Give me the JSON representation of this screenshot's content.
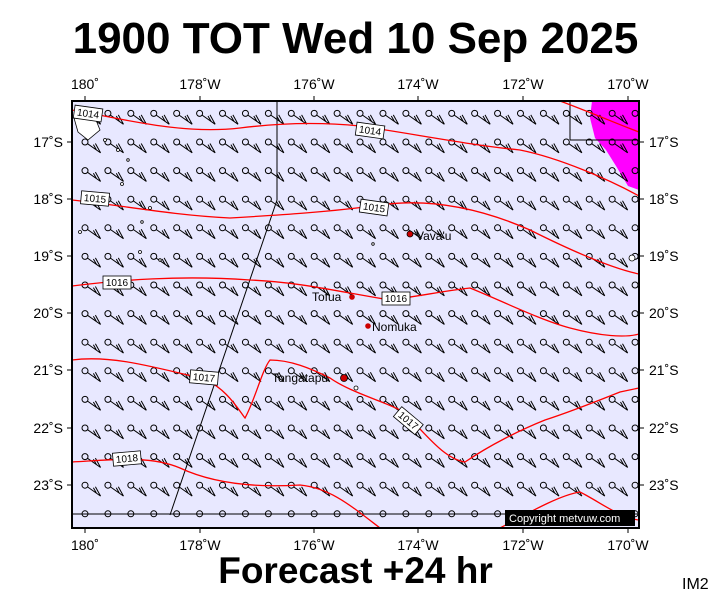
{
  "title": "1900 TOT Wed 10 Sep 2025",
  "footer": "Forecast +24 hr",
  "image_id": "IM2",
  "copyright": "Copyright metvuw.com",
  "colors": {
    "sea": "#e8e8ff",
    "isobar": "#ff0000",
    "barb": "#000000",
    "high_wind": "#ff00ff",
    "place_dot": "#cc0000"
  },
  "longitude_ticks": [
    "180˚",
    "178˚W",
    "176˚W",
    "174˚W",
    "172˚W",
    "170˚W"
  ],
  "latitude_ticks": [
    "17˚S",
    "18˚S",
    "19˚S",
    "20˚S",
    "21˚S",
    "22˚S",
    "23˚S"
  ],
  "places": [
    {
      "name": "Vava'u",
      "lon": -174.0,
      "lat": -18.6
    },
    {
      "name": "Tofua",
      "lon": -175.1,
      "lat": -19.7
    },
    {
      "name": "Nomuka",
      "lon": -174.8,
      "lat": -20.25
    },
    {
      "name": "Tongatapu",
      "lon": -175.2,
      "lat": -21.15
    }
  ],
  "isobar_labels": [
    "1014",
    "1014",
    "1015",
    "1015",
    "1016",
    "1016",
    "1017",
    "1017",
    "1018"
  ],
  "wind_barbs": {
    "lon_start": 180.4,
    "lon_step": -0.4,
    "lat_start": -16.5,
    "lat_step": -0.5,
    "cols": 27,
    "rows": 15
  }
}
